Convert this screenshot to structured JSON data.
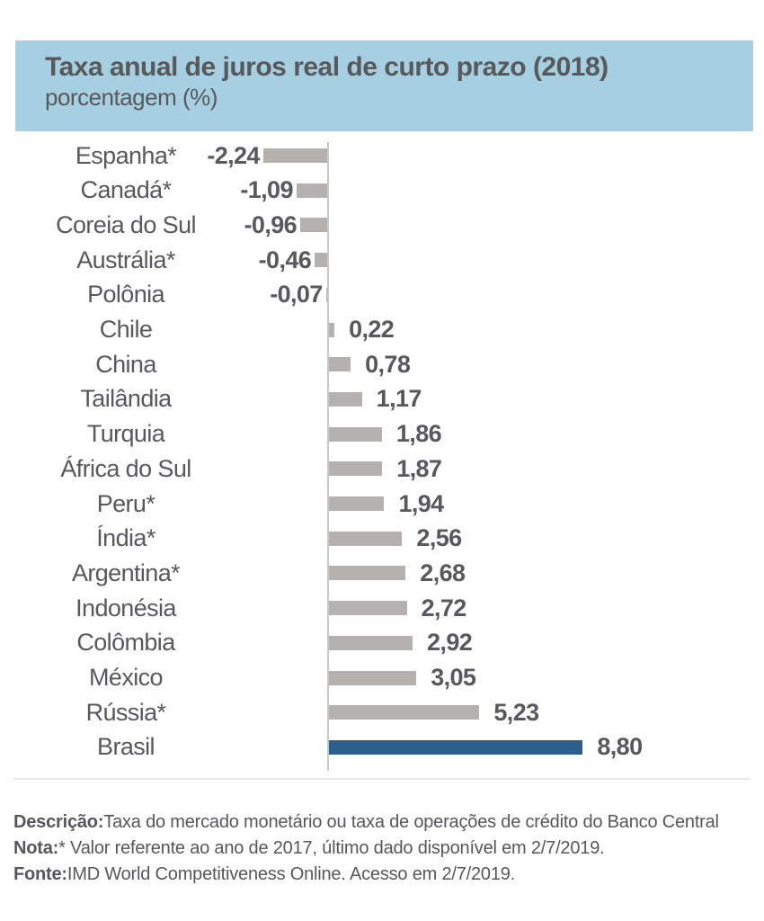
{
  "header": {
    "title": "Taxa anual de juros real de curto prazo (2018)",
    "subtitle": "porcentagem (%)"
  },
  "chart_data": {
    "type": "bar",
    "orientation": "horizontal",
    "title": "Taxa anual de juros real de curto prazo (2018)",
    "unit_label": "porcentagem (%)",
    "categories": [
      "Espanha*",
      "Canadá*",
      "Coreia do Sul",
      "Austrália*",
      "Polônia",
      "Chile",
      "China",
      "Tailândia",
      "Turquia",
      "África do Sul",
      "Peru*",
      "Índia*",
      "Argentina*",
      "Indonésia",
      "Colômbia",
      "México",
      "Rússia*",
      "Brasil"
    ],
    "values": [
      -2.24,
      -1.09,
      -0.96,
      -0.46,
      -0.07,
      0.22,
      0.78,
      1.17,
      1.86,
      1.87,
      1.94,
      2.56,
      2.68,
      2.72,
      2.92,
      3.05,
      5.23,
      8.8
    ],
    "value_labels": [
      "-2,24",
      "-1,09",
      "-0,96",
      "-0,46",
      "-0,07",
      "0,22",
      "0,78",
      "1,17",
      "1,86",
      "1,87",
      "1,94",
      "2,56",
      "2,68",
      "2,72",
      "2,92",
      "3,05",
      "5,23",
      "8,80"
    ],
    "highlight_category": "Brasil",
    "xlim": [
      -2.24,
      8.8
    ],
    "grid": false,
    "legend": false,
    "zero_axis_line": true
  },
  "footer": {
    "lines": [
      {
        "label": "Descrição:",
        "text": "Taxa do mercado monetário ou taxa de operações de crédito do Banco Central"
      },
      {
        "label": "Nota:",
        "text": "* Valor referente ao ano de 2017, último dado disponível em 2/7/2019."
      },
      {
        "label": "Fonte:",
        "text": "IMD World Competitiveness Online. Acesso em 2/7/2019."
      }
    ]
  },
  "colors": {
    "header_bg": "#a6cfe1",
    "heading_text": "#58595b",
    "label_text": "#58595b",
    "bar_gray": "#b4b1ae",
    "bar_highlight": "#2d5f8c",
    "axis_line": "#c9c9c9",
    "divider": "#e7e7ea",
    "footer_text": "#565759"
  }
}
